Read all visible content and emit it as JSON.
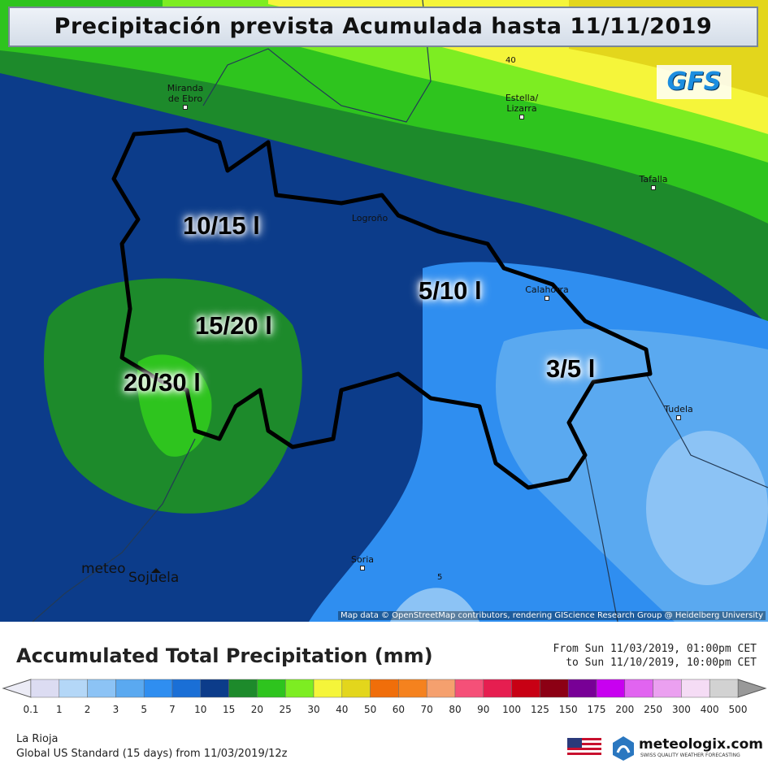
{
  "header": {
    "title": "Precipitación prevista Acumulada hasta 11/11/2019",
    "model": "GFS"
  },
  "map": {
    "regions": [
      "10/15 l",
      "15/20 l",
      "20/30 l",
      "5/10 l",
      "3/5 l"
    ],
    "places": [
      {
        "lines": [
          "Miranda",
          "de Ebro"
        ]
      },
      {
        "lines": [
          "Estella/",
          "Lizarra"
        ]
      },
      {
        "lines": [
          "Tafalla"
        ]
      },
      {
        "lines": [
          "Logroño"
        ]
      },
      {
        "lines": [
          "Calahorra"
        ]
      },
      {
        "lines": [
          "Tudela"
        ]
      },
      {
        "lines": [
          "Soria"
        ]
      }
    ],
    "contour_labels": [
      40,
      5
    ],
    "station": [
      "meteo",
      "Sojuela"
    ],
    "attribution": "Map data © OpenStreetMap contributors, rendering GIScience Research Group @ Heidelberg University"
  },
  "legend": {
    "title": "Accumulated Total Precipitation (mm)",
    "period": [
      "From Sun 11/03/2019, 01:00pm CET",
      "to Sun 11/10/2019, 10:00pm CET"
    ],
    "ticks": [
      0.1,
      1,
      2,
      3,
      5,
      7,
      10,
      15,
      20,
      25,
      30,
      40,
      50,
      60,
      70,
      80,
      90,
      100,
      125,
      150,
      175,
      200,
      250,
      300,
      400,
      500
    ],
    "colors": [
      "#dcdcf2",
      "#b4d7f7",
      "#8cc3f5",
      "#5aa9f0",
      "#2f8ef0",
      "#1a6fd6",
      "#0c3c8a",
      "#1d8a2b",
      "#2ec41e",
      "#7ded22",
      "#f5f53a",
      "#e3d61c",
      "#f06e0a",
      "#f5821e",
      "#f5a06e",
      "#f55078",
      "#e61e50",
      "#c80014",
      "#8c0014",
      "#780096",
      "#c800f0",
      "#e164f0",
      "#eba0f0",
      "#f5dcf5",
      "#d2d2d2"
    ]
  },
  "footer": {
    "region": "La Rioja",
    "run": "Global US Standard (15 days) from 11/03/2019/12z",
    "brand": "meteologix.com",
    "tagline": "SWISS QUALITY WEATHER FORECASTING"
  }
}
